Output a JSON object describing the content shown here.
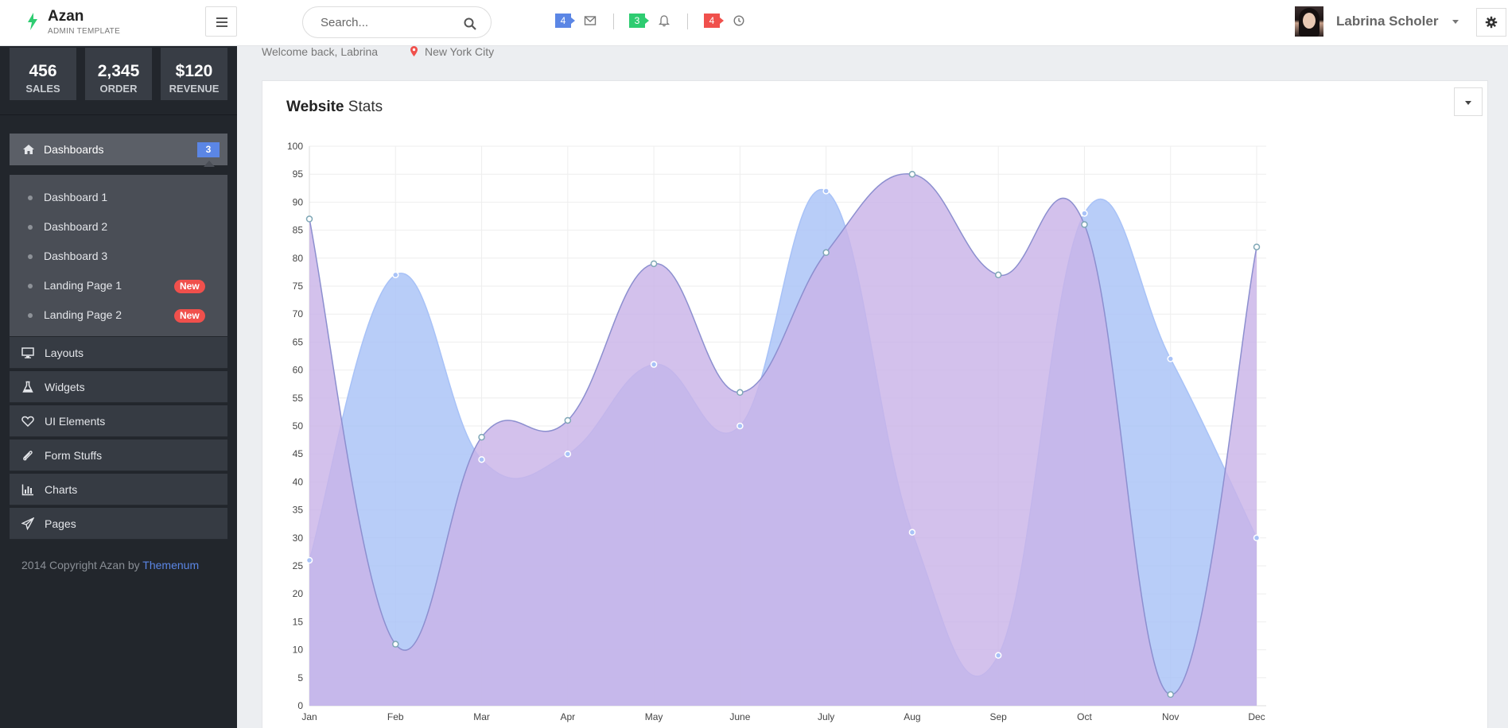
{
  "brand": {
    "name": "Azan",
    "sub": "ADMIN TEMPLATE"
  },
  "search": {
    "placeholder": "Search..."
  },
  "notifications": [
    {
      "count": "4",
      "color": "#5b86e5",
      "icon": "envelope-icon"
    },
    {
      "count": "3",
      "color": "#2ecc71",
      "icon": "bell-icon"
    },
    {
      "count": "4",
      "color": "#f0504c",
      "icon": "clock-icon"
    }
  ],
  "user": {
    "name": "Labrina Scholer"
  },
  "sidebar": {
    "stats": [
      {
        "value": "456",
        "label": "SALES"
      },
      {
        "value": "2,345",
        "label": "ORDER"
      },
      {
        "value": "$120",
        "label": "REVENUE"
      }
    ],
    "dashboards": {
      "label": "Dashboards",
      "count": "3",
      "icon": "home-icon"
    },
    "submenu": [
      {
        "label": "Dashboard 1",
        "badge": ""
      },
      {
        "label": "Dashboard 2",
        "badge": ""
      },
      {
        "label": "Dashboard 3",
        "badge": ""
      },
      {
        "label": "Landing Page 1",
        "badge": "New"
      },
      {
        "label": "Landing Page 2",
        "badge": "New"
      }
    ],
    "items": [
      {
        "label": "Layouts",
        "icon": "monitor-icon"
      },
      {
        "label": "Widgets",
        "icon": "flask-icon"
      },
      {
        "label": "UI Elements",
        "icon": "heart-icon"
      },
      {
        "label": "Form Stuffs",
        "icon": "paperclip-icon"
      },
      {
        "label": "Charts",
        "icon": "bar-chart-icon"
      },
      {
        "label": "Pages",
        "icon": "paper-plane-icon"
      }
    ],
    "copyright": {
      "text": "2014 Copyright Azan by",
      "link": "Themenum"
    }
  },
  "welcome": {
    "text": "Welcome back, Labrina",
    "location": "New York City"
  },
  "panel": {
    "title_bold": "Website",
    "title_rest": "Stats"
  },
  "chart_data": {
    "type": "area",
    "title": "Website Stats",
    "categories": [
      "Jan",
      "Feb",
      "Mar",
      "Apr",
      "May",
      "June",
      "July",
      "Aug",
      "Sep",
      "Oct",
      "Nov",
      "Dec"
    ],
    "ylim": [
      0,
      100
    ],
    "yticks": [
      0,
      5,
      10,
      15,
      20,
      25,
      30,
      35,
      40,
      45,
      50,
      55,
      60,
      65,
      70,
      75,
      80,
      85,
      90,
      95,
      100
    ],
    "grid": true,
    "series": [
      {
        "values": [
          26,
          77,
          44,
          45,
          61,
          50,
          92,
          31,
          9,
          88,
          62,
          30
        ],
        "color": "#a8c2f7"
      },
      {
        "values": [
          87,
          11,
          48,
          51,
          79,
          56,
          81,
          95,
          77,
          86,
          2,
          82
        ],
        "color": "#c9b3e8"
      }
    ]
  }
}
